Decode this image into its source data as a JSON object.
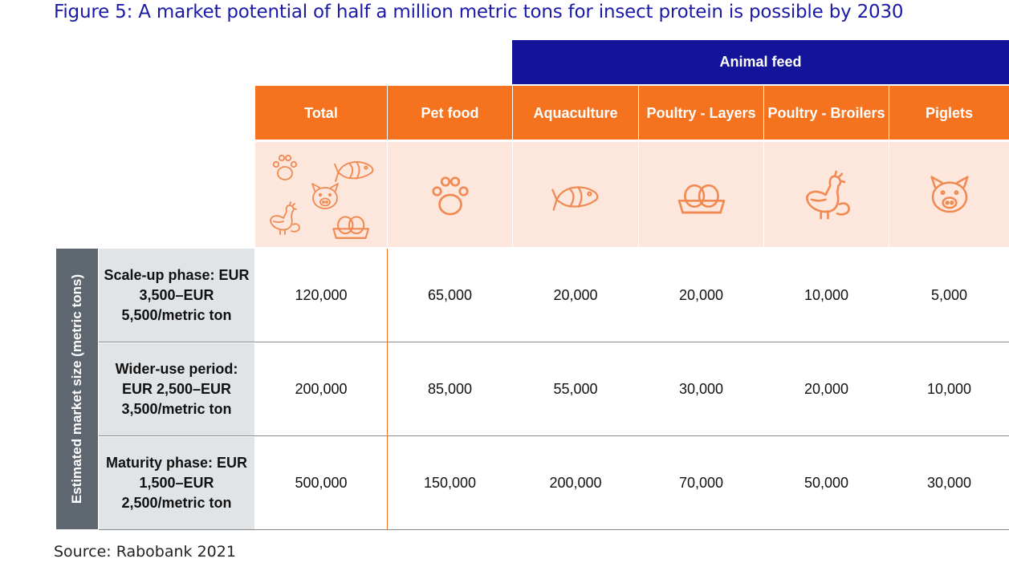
{
  "title": "Figure 5: A market potential of half a million metric tons for insect protein is possible by 2030",
  "group_header": "Animal feed",
  "columns": [
    {
      "label": "Total"
    },
    {
      "label": "Pet food"
    },
    {
      "label": "Aquaculture"
    },
    {
      "label": "Poultry - Layers"
    },
    {
      "label": "Poultry - Broilers"
    },
    {
      "label": "Piglets"
    }
  ],
  "icons": {
    "total": [
      "paw-icon",
      "fish-icon",
      "pig-icon",
      "chicken-icon",
      "eggs-icon"
    ],
    "pet_food": "paw-icon",
    "aquaculture": "fish-icon",
    "layers": "eggs-icon",
    "broilers": "chicken-icon",
    "piglets": "pig-icon"
  },
  "side_label": "Estimated market size (metric tons)",
  "rows": [
    {
      "label": "Scale-up phase: EUR 3,500–EUR 5,500/metric ton",
      "values": [
        "120,000",
        "65,000",
        "20,000",
        "20,000",
        "10,000",
        "5,000"
      ]
    },
    {
      "label": "Wider-use period: EUR 2,500–EUR 3,500/metric ton",
      "values": [
        "200,000",
        "85,000",
        "55,000",
        "30,000",
        "20,000",
        "10,000"
      ]
    },
    {
      "label": "Maturity phase: EUR 1,500–EUR 2,500/metric ton",
      "values": [
        "500,000",
        "150,000",
        "200,000",
        "70,000",
        "50,000",
        "30,000"
      ]
    }
  ],
  "source": "Source: Rabobank 2021",
  "colors": {
    "navy": "#14149a",
    "orange": "#f5731f",
    "peach": "#fde7dc",
    "slate": "#5e6770",
    "light_gray": "#e1e4e7"
  }
}
